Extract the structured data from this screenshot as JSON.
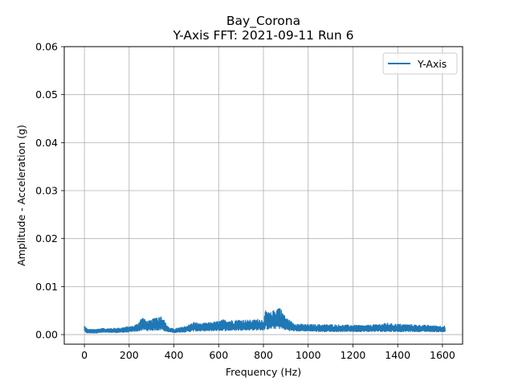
{
  "chart_data": {
    "type": "line",
    "title": "Bay_Corona",
    "subtitle": "Y-Axis FFT: 2021-09-11 Run 6",
    "xlabel": "Frequency (Hz)",
    "ylabel": "Amplitude - Acceleration (g)",
    "xlim": [
      -90,
      1690
    ],
    "ylim": [
      -0.002,
      0.06
    ],
    "xticks": [
      0,
      200,
      400,
      600,
      800,
      1000,
      1200,
      1400,
      1600
    ],
    "yticks": [
      0.0,
      0.01,
      0.02,
      0.03,
      0.04,
      0.05,
      0.06
    ],
    "xtick_labels": [
      "0",
      "200",
      "400",
      "600",
      "800",
      "1000",
      "1200",
      "1400",
      "1600"
    ],
    "ytick_labels": [
      "0.00",
      "0.01",
      "0.02",
      "0.03",
      "0.04",
      "0.05",
      "0.06"
    ],
    "grid": true,
    "legend_position": "top-right",
    "series": [
      {
        "name": "Y-Axis",
        "color": "#1f77b4",
        "x_range": [
          0,
          1612
        ],
        "envelope": {
          "x": [
            0,
            5,
            15,
            40,
            80,
            120,
            160,
            200,
            220,
            240,
            250,
            260,
            280,
            300,
            320,
            330,
            340,
            350,
            360,
            380,
            400,
            440,
            470,
            490,
            520,
            560,
            600,
            620,
            650,
            700,
            750,
            780,
            800,
            810,
            830,
            850,
            860,
            870,
            880,
            900,
            930,
            960,
            1000,
            1050,
            1100,
            1150,
            1200,
            1250,
            1300,
            1350,
            1380,
            1400,
            1450,
            1500,
            1550,
            1612
          ],
          "upper": [
            0.0019,
            0.0016,
            0.0011,
            0.0011,
            0.0013,
            0.0013,
            0.0014,
            0.0017,
            0.0018,
            0.0024,
            0.0032,
            0.0036,
            0.0028,
            0.003,
            0.0038,
            0.0036,
            0.0039,
            0.0038,
            0.0026,
            0.0014,
            0.0012,
            0.0016,
            0.0021,
            0.0026,
            0.0023,
            0.0025,
            0.0028,
            0.0031,
            0.003,
            0.0031,
            0.003,
            0.0033,
            0.003,
            0.005,
            0.0045,
            0.0052,
            0.0055,
            0.006,
            0.0052,
            0.0036,
            0.0025,
            0.0022,
            0.0021,
            0.0021,
            0.0021,
            0.002,
            0.002,
            0.0019,
            0.0021,
            0.0024,
            0.0022,
            0.0022,
            0.0021,
            0.002,
            0.0019,
            0.0018
          ],
          "lower": [
            0.0009,
            0.0003,
            0.0003,
            0.0003,
            0.0004,
            0.0004,
            0.0004,
            0.0005,
            0.0006,
            0.0007,
            0.0008,
            0.0009,
            0.0008,
            0.0008,
            0.0009,
            0.0009,
            0.0009,
            0.0009,
            0.0007,
            0.0005,
            0.0004,
            0.0005,
            0.0006,
            0.0007,
            0.0007,
            0.0007,
            0.0008,
            0.0008,
            0.0008,
            0.0009,
            0.0009,
            0.0009,
            0.0009,
            0.0011,
            0.0011,
            0.0012,
            0.0012,
            0.0012,
            0.0011,
            0.0009,
            0.0007,
            0.0007,
            0.0007,
            0.0006,
            0.0006,
            0.0006,
            0.0006,
            0.0006,
            0.0006,
            0.0006,
            0.0006,
            0.0006,
            0.0006,
            0.0006,
            0.0006,
            0.0005
          ]
        }
      }
    ]
  }
}
